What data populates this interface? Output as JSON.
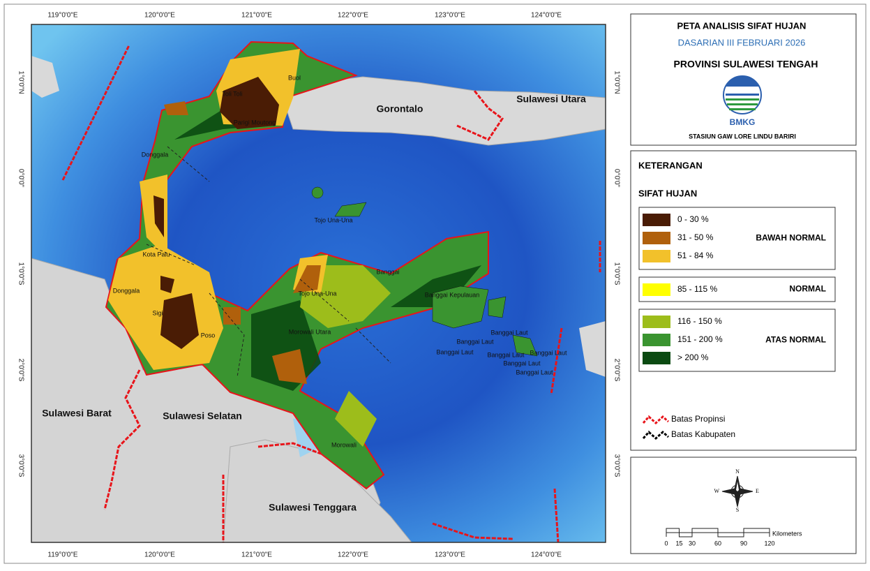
{
  "map": {
    "lon_labels": [
      "119°0'0\"E",
      "120°0'0\"E",
      "121°0'0\"E",
      "122°0'0\"E",
      "123°0'0\"E",
      "124°0'0\"E"
    ],
    "lat_labels": [
      "1°0'0\"N",
      "0°0'0\"",
      "1°0'0\"S",
      "2°0'0\"S",
      "3°0'0\"S"
    ],
    "places": [
      {
        "label": "Gorontalo"
      },
      {
        "label": "Sulawesi Utara"
      },
      {
        "label": "Sulawesi Barat"
      },
      {
        "label": "Sulawesi Selatan"
      },
      {
        "label": "Sulawesi Tenggara"
      },
      {
        "label": "Buol"
      },
      {
        "label": "Toli Toli"
      },
      {
        "label": "Parigi Moutong"
      },
      {
        "label": "Donggala"
      },
      {
        "label": "Tojo Una-Una"
      },
      {
        "label": "Kota Palu"
      },
      {
        "label": "Banggai"
      },
      {
        "label": "Donggala"
      },
      {
        "label": "Tojo Una-Una"
      },
      {
        "label": "Sigi"
      },
      {
        "label": "Poso"
      },
      {
        "label": "Morowali Utara"
      },
      {
        "label": "Banggai Kepulauan"
      },
      {
        "label": "Banggai Laut"
      },
      {
        "label": "Banggai Laut"
      },
      {
        "label": "Banggai Laut"
      },
      {
        "label": "Banggai Laut"
      },
      {
        "label": "Banggai Laut"
      },
      {
        "label": "Banggai Laut"
      },
      {
        "label": "Banggai Laut"
      },
      {
        "label": "Morowali"
      }
    ]
  },
  "header": {
    "title": "PETA ANALISIS SIFAT HUJAN",
    "period": "DASARIAN III FEBRUARI 2026",
    "region": "PROVINSI SULAWESI TENGAH",
    "logo": "BMKG",
    "station": "STASIUN GAW LORE LINDU BARIRI"
  },
  "legend": {
    "title": "KETERANGAN",
    "subtitle": "SIFAT HUJAN",
    "groups": [
      {
        "label": "BAWAH NORMAL",
        "classes": [
          {
            "label": "0 - 30 %",
            "color": "#4a1c05"
          },
          {
            "label": "31 - 50 %",
            "color": "#b0600c"
          },
          {
            "label": "51 - 84 %",
            "color": "#f2c12b"
          }
        ]
      },
      {
        "label": "NORMAL",
        "classes": [
          {
            "label": "85 - 115 %",
            "color": "#ffff00"
          }
        ]
      },
      {
        "label": "ATAS NORMAL",
        "classes": [
          {
            "label": "116 - 150 %",
            "color": "#9dbd1b"
          },
          {
            "label": "151 - 200 %",
            "color": "#3a9430"
          },
          {
            "label": "> 200 %",
            "color": "#0b4a12"
          }
        ]
      }
    ],
    "boundaries": [
      {
        "label": "Batas Propinsi",
        "color": "#e8141a"
      },
      {
        "label": "Batas Kabupaten",
        "color": "#000000"
      }
    ]
  },
  "compass": {
    "n": "N",
    "s": "S",
    "e": "E",
    "w": "W"
  },
  "scale": {
    "unit": "Kilometers",
    "ticks": [
      0,
      15,
      30,
      60,
      90,
      120
    ]
  }
}
